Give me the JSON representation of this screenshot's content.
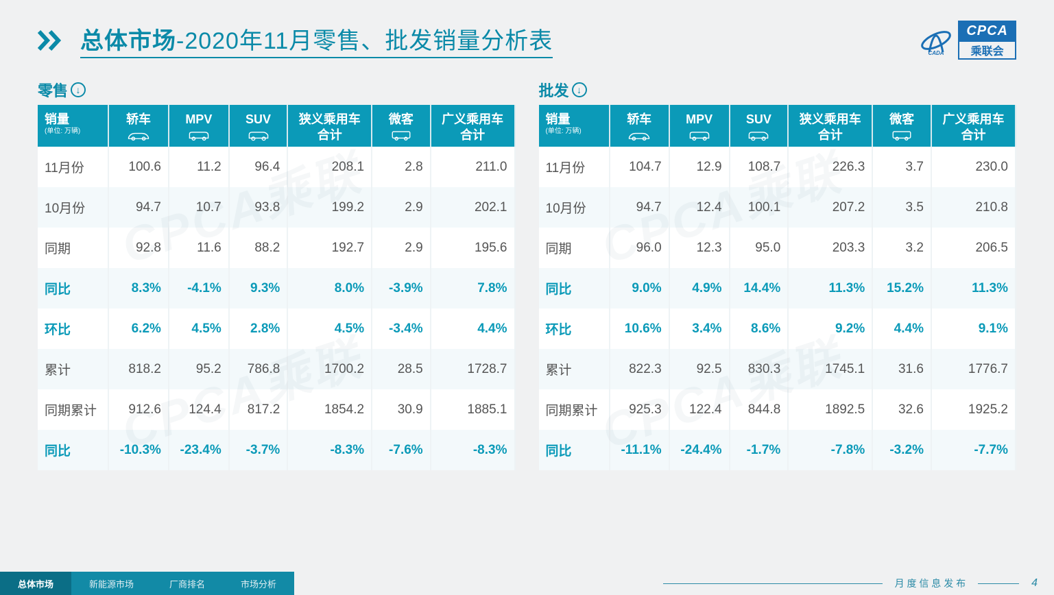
{
  "header": {
    "title_bold": "总体市场",
    "title_thin": "-2020年11月零售、批发销量分析表",
    "logo_cpca": "CPCA",
    "logo_sub": "乘联会",
    "logo_cada": "CADA"
  },
  "colors": {
    "accent": "#0b9ab8",
    "accent_dark": "#0b6e86",
    "text": "#555555",
    "bg": "#f0f1f2",
    "row_alt": "#f3f9fb",
    "logo_blue": "#1b6fb5"
  },
  "tables": {
    "columns": [
      {
        "label": "销量",
        "unit": "(单位: 万辆)",
        "icon": null
      },
      {
        "label": "轿车",
        "icon": "sedan"
      },
      {
        "label": "MPV",
        "icon": "mpv"
      },
      {
        "label": "SUV",
        "icon": "suv"
      },
      {
        "label": "狭义乘用车合计",
        "icon": null
      },
      {
        "label": "微客",
        "icon": "minibus"
      },
      {
        "label": "广义乘用车合计",
        "icon": null
      }
    ],
    "retail": {
      "title": "零售",
      "rows": [
        {
          "label": "11月份",
          "hl": false,
          "vals": [
            "100.6",
            "11.2",
            "96.4",
            "208.1",
            "2.8",
            "211.0"
          ]
        },
        {
          "label": "10月份",
          "hl": false,
          "vals": [
            "94.7",
            "10.7",
            "93.8",
            "199.2",
            "2.9",
            "202.1"
          ]
        },
        {
          "label": "同期",
          "hl": false,
          "vals": [
            "92.8",
            "11.6",
            "88.2",
            "192.7",
            "2.9",
            "195.6"
          ]
        },
        {
          "label": "同比",
          "hl": true,
          "vals": [
            "8.3%",
            "-4.1%",
            "9.3%",
            "8.0%",
            "-3.9%",
            "7.8%"
          ]
        },
        {
          "label": "环比",
          "hl": true,
          "vals": [
            "6.2%",
            "4.5%",
            "2.8%",
            "4.5%",
            "-3.4%",
            "4.4%"
          ]
        },
        {
          "label": "累计",
          "hl": false,
          "vals": [
            "818.2",
            "95.2",
            "786.8",
            "1700.2",
            "28.5",
            "1728.7"
          ]
        },
        {
          "label": "同期累计",
          "hl": false,
          "vals": [
            "912.6",
            "124.4",
            "817.2",
            "1854.2",
            "30.9",
            "1885.1"
          ]
        },
        {
          "label": "同比",
          "hl": true,
          "vals": [
            "-10.3%",
            "-23.4%",
            "-3.7%",
            "-8.3%",
            "-7.6%",
            "-8.3%"
          ]
        }
      ]
    },
    "wholesale": {
      "title": "批发",
      "rows": [
        {
          "label": "11月份",
          "hl": false,
          "vals": [
            "104.7",
            "12.9",
            "108.7",
            "226.3",
            "3.7",
            "230.0"
          ]
        },
        {
          "label": "10月份",
          "hl": false,
          "vals": [
            "94.7",
            "12.4",
            "100.1",
            "207.2",
            "3.5",
            "210.8"
          ]
        },
        {
          "label": "同期",
          "hl": false,
          "vals": [
            "96.0",
            "12.3",
            "95.0",
            "203.3",
            "3.2",
            "206.5"
          ]
        },
        {
          "label": "同比",
          "hl": true,
          "vals": [
            "9.0%",
            "4.9%",
            "14.4%",
            "11.3%",
            "15.2%",
            "11.3%"
          ]
        },
        {
          "label": "环比",
          "hl": true,
          "vals": [
            "10.6%",
            "3.4%",
            "8.6%",
            "9.2%",
            "4.4%",
            "9.1%"
          ]
        },
        {
          "label": "累计",
          "hl": false,
          "vals": [
            "822.3",
            "92.5",
            "830.3",
            "1745.1",
            "31.6",
            "1776.7"
          ]
        },
        {
          "label": "同期累计",
          "hl": false,
          "vals": [
            "925.3",
            "122.4",
            "844.8",
            "1892.5",
            "32.6",
            "1925.2"
          ]
        },
        {
          "label": "同比",
          "hl": true,
          "vals": [
            "-11.1%",
            "-24.4%",
            "-1.7%",
            "-7.8%",
            "-3.2%",
            "-7.7%"
          ]
        }
      ]
    }
  },
  "footer": {
    "tabs": [
      {
        "label": "总体市场",
        "active": true
      },
      {
        "label": "新能源市场",
        "active": false
      },
      {
        "label": "厂商排名",
        "active": false
      },
      {
        "label": "市场分析",
        "active": false
      }
    ],
    "caption": "月 度 信 息 发 布",
    "page": "4"
  },
  "watermark": "CPCA乘联"
}
